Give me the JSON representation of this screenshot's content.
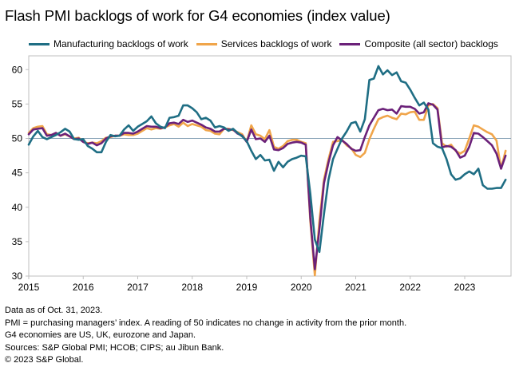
{
  "chart_data": {
    "type": "line",
    "title": "Flash PMI backlogs of work for G4 economies (index value)",
    "xlabel": "",
    "ylabel": "",
    "x_start": "2015-01",
    "x_end": "2023-10",
    "frequency": "monthly",
    "xlim": [
      2015.0,
      2023.85
    ],
    "ylim": [
      30,
      62
    ],
    "y_ticks": [
      30,
      35,
      40,
      45,
      50,
      55,
      60
    ],
    "x_tick_labels": [
      "2015",
      "2016",
      "2017",
      "2018",
      "2019",
      "2020",
      "2021",
      "2022",
      "2023"
    ],
    "reference_line": 50,
    "legend_position": "top",
    "series": [
      {
        "name": "Manufacturing backlogs of work",
        "color": "#1f6e84",
        "values": [
          49.1,
          50.3,
          51.1,
          50.2,
          49.9,
          50.2,
          50.5,
          50.9,
          51.4,
          51.0,
          49.9,
          49.8,
          49.9,
          48.9,
          48.5,
          48.0,
          48.0,
          49.5,
          50.5,
          50.3,
          50.4,
          51.3,
          51.9,
          51.1,
          51.7,
          52.1,
          52.5,
          53.2,
          52.2,
          51.7,
          51.5,
          53.0,
          53.1,
          53.3,
          54.8,
          54.8,
          54.4,
          53.8,
          52.8,
          53.0,
          52.6,
          51.6,
          51.8,
          51.6,
          51.1,
          51.4,
          50.8,
          50.3,
          49.6,
          48.2,
          47.0,
          47.6,
          46.8,
          46.9,
          45.3,
          46.6,
          45.8,
          46.6,
          47.0,
          47.2,
          47.5,
          47.4,
          42.0,
          35.3,
          33.5,
          39.0,
          44.0,
          47.0,
          48.5,
          50.0,
          51.0,
          52.2,
          52.4,
          51.0,
          52.8,
          58.5,
          58.7,
          60.5,
          59.3,
          59.9,
          59.2,
          59.6,
          58.3,
          58.1,
          57.1,
          55.9,
          54.8,
          55.2,
          54.2,
          49.3,
          48.8,
          48.6,
          47.0,
          44.8,
          44.0,
          44.2,
          44.8,
          45.2,
          44.8,
          45.6,
          43.2,
          42.7,
          42.7,
          42.8,
          42.8,
          44.0
        ]
      },
      {
        "name": "Services backlogs of work",
        "color": "#f0a54a",
        "values": [
          50.8,
          51.5,
          51.7,
          51.8,
          50.6,
          50.5,
          50.8,
          50.4,
          50.6,
          50.3,
          50.0,
          50.1,
          49.5,
          49.3,
          49.4,
          49.3,
          49.6,
          50.1,
          50.2,
          50.4,
          50.4,
          50.6,
          50.5,
          50.5,
          50.7,
          51.1,
          51.5,
          51.3,
          51.5,
          51.4,
          51.6,
          51.9,
          52.1,
          51.7,
          52.3,
          51.8,
          52.1,
          51.9,
          51.7,
          51.2,
          51.1,
          50.7,
          50.6,
          51.4,
          51.4,
          51.2,
          50.9,
          50.6,
          49.5,
          51.9,
          50.6,
          50.4,
          49.9,
          51.2,
          48.8,
          48.5,
          48.9,
          49.6,
          49.8,
          49.8,
          49.5,
          49.3,
          38.0,
          30.1,
          38.0,
          44.0,
          47.0,
          49.5,
          49.6,
          49.8,
          49.0,
          48.6,
          47.6,
          47.3,
          47.9,
          49.9,
          51.4,
          52.8,
          53.1,
          53.3,
          53.0,
          52.8,
          53.6,
          53.5,
          53.8,
          53.9,
          52.7,
          52.7,
          54.8,
          55.0,
          54.4,
          49.3,
          48.8,
          49.1,
          48.2,
          47.8,
          48.2,
          50.0,
          51.9,
          51.7,
          51.3,
          50.9,
          50.6,
          49.7,
          45.6,
          48.2
        ]
      },
      {
        "name": "Composite (all sector) backlogs",
        "color": "#6b2179",
        "values": [
          50.6,
          51.3,
          51.4,
          51.5,
          50.4,
          50.5,
          50.8,
          50.4,
          50.7,
          50.3,
          49.9,
          50.0,
          49.5,
          49.2,
          49.4,
          49.0,
          49.3,
          50.0,
          50.3,
          50.4,
          50.4,
          50.8,
          50.8,
          50.7,
          51.0,
          51.4,
          51.8,
          51.7,
          51.7,
          51.5,
          51.6,
          52.2,
          52.3,
          52.1,
          52.7,
          52.4,
          52.6,
          52.3,
          52.0,
          51.6,
          51.4,
          51.0,
          51.0,
          51.4,
          51.3,
          51.3,
          50.7,
          50.4,
          49.5,
          51.3,
          49.9,
          50.0,
          49.5,
          50.4,
          48.4,
          48.3,
          48.6,
          49.2,
          49.4,
          49.5,
          49.4,
          49.1,
          38.5,
          31.0,
          36.8,
          43.5,
          46.5,
          49.0,
          50.2,
          49.7,
          49.2,
          48.5,
          48.2,
          48.3,
          50.2,
          51.9,
          53.0,
          54.1,
          54.3,
          54.1,
          54.2,
          53.6,
          54.7,
          54.6,
          54.6,
          54.3,
          53.6,
          53.8,
          55.1,
          54.9,
          54.2,
          48.7,
          48.9,
          48.8,
          48.3,
          47.2,
          47.5,
          48.8,
          50.8,
          50.7,
          50.2,
          49.6,
          49.0,
          47.8,
          45.6,
          47.5
        ]
      }
    ]
  },
  "notes": [
    "Data as of Oct. 31, 2023.",
    "PMI = purchasing managers’ index. A reading of 50 indicates no change in activity from the prior month.",
    "G4 economies are US, UK, eurozone and Japan.",
    "Sources: S&P Global PMI; HCOB; CIPS; au Jibun Bank.",
    "© 2023 S&P Global."
  ]
}
